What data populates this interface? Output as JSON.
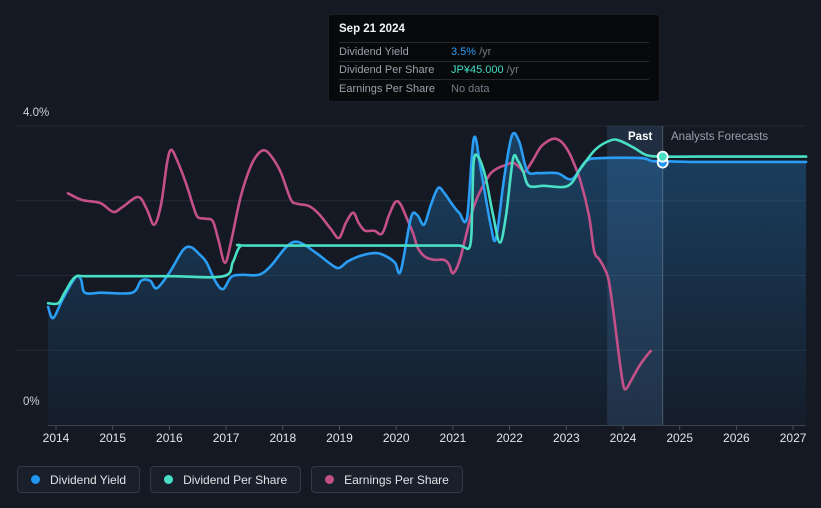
{
  "labels": {
    "past": "Past",
    "forecast": "Analysts Forecasts"
  },
  "axis": {
    "y_top": "4.0%",
    "y_bottom": "0%",
    "years": [
      "2014",
      "2015",
      "2016",
      "2017",
      "2018",
      "2019",
      "2020",
      "2021",
      "2022",
      "2023",
      "2024",
      "2025",
      "2026",
      "2027"
    ]
  },
  "tooltip": {
    "date": "Sep 21 2024",
    "rows": [
      {
        "label": "Dividend Yield",
        "value": "3.5%",
        "unit": "/yr",
        "value_color": "#2e9df5"
      },
      {
        "label": "Dividend Per Share",
        "value": "JP¥45.000",
        "unit": "/yr",
        "value_color": "#43dec5"
      },
      {
        "label": "Earnings Per Share",
        "value": "No data",
        "unit": "",
        "value_color": "#757c86"
      }
    ]
  },
  "legend": [
    {
      "label": "Dividend Yield",
      "color": "#2196f3"
    },
    {
      "label": "Dividend Per Share",
      "color": "#49dfc4"
    },
    {
      "label": "Earnings Per Share",
      "color": "#c4508a"
    }
  ],
  "colors": {
    "background": "#141923",
    "grid": "rgba(175,195,220,0.10)",
    "axis_line": "#39424f",
    "tick": "#4a5260",
    "divider": "rgba(190,205,225,0.30)",
    "highlight_band": "rgba(105,160,225,0.16)",
    "area_top": "rgba(41,154,243,0.30)",
    "area_bottom": "rgba(41,154,243,0.03)",
    "marker_ring": "#ffffff"
  },
  "chart_data": {
    "type": "line",
    "title": "Dividend history and forecast",
    "ylim": [
      0,
      4
    ],
    "y_unit": "percent",
    "ytick_labels": [
      "0%",
      "4.0%"
    ],
    "xticks": [
      2014,
      2015,
      2016,
      2017,
      2018,
      2019,
      2020,
      2021,
      2022,
      2023,
      2024,
      2025,
      2026,
      2027
    ],
    "x_range": [
      2013.85,
      2027.23
    ],
    "past_forecast_divider_x": 2024.7,
    "highlight_band_x": [
      2023.72,
      2024.7
    ],
    "legend_position": "bottom-left",
    "grid": true,
    "marker": {
      "x": 2024.7,
      "date": "Sep 21 2024",
      "points": [
        {
          "series": "Dividend Yield",
          "y": 3.51,
          "color": "#2196f3",
          "display": "3.5% /yr"
        },
        {
          "series": "Dividend Per Share",
          "y": 3.59,
          "color": "#49dfc4",
          "display": "JP¥45.000 /yr"
        }
      ]
    },
    "series": [
      {
        "name": "Earnings Per Share",
        "color": "#c4508a",
        "ends_at": 2024.49,
        "points": [
          [
            2014.21,
            3.1
          ],
          [
            2014.46,
            3.01
          ],
          [
            2014.78,
            2.97
          ],
          [
            2015.01,
            2.85
          ],
          [
            2015.18,
            2.92
          ],
          [
            2015.45,
            3.05
          ],
          [
            2015.6,
            2.89
          ],
          [
            2015.73,
            2.68
          ],
          [
            2015.85,
            2.94
          ],
          [
            2015.96,
            3.51
          ],
          [
            2016.03,
            3.68
          ],
          [
            2016.13,
            3.55
          ],
          [
            2016.29,
            3.24
          ],
          [
            2016.42,
            2.93
          ],
          [
            2016.5,
            2.78
          ],
          [
            2016.65,
            2.76
          ],
          [
            2016.77,
            2.72
          ],
          [
            2016.87,
            2.46
          ],
          [
            2016.98,
            2.17
          ],
          [
            2017.09,
            2.46
          ],
          [
            2017.26,
            3.06
          ],
          [
            2017.44,
            3.47
          ],
          [
            2017.58,
            3.64
          ],
          [
            2017.7,
            3.67
          ],
          [
            2017.83,
            3.56
          ],
          [
            2017.97,
            3.37
          ],
          [
            2018.14,
            3.02
          ],
          [
            2018.25,
            2.96
          ],
          [
            2018.46,
            2.93
          ],
          [
            2018.64,
            2.82
          ],
          [
            2018.85,
            2.62
          ],
          [
            2018.99,
            2.5
          ],
          [
            2019.11,
            2.7
          ],
          [
            2019.24,
            2.84
          ],
          [
            2019.34,
            2.7
          ],
          [
            2019.45,
            2.6
          ],
          [
            2019.61,
            2.6
          ],
          [
            2019.75,
            2.56
          ],
          [
            2019.87,
            2.8
          ],
          [
            2019.98,
            2.98
          ],
          [
            2020.07,
            2.96
          ],
          [
            2020.19,
            2.76
          ],
          [
            2020.3,
            2.56
          ],
          [
            2020.38,
            2.37
          ],
          [
            2020.51,
            2.25
          ],
          [
            2020.67,
            2.21
          ],
          [
            2020.84,
            2.21
          ],
          [
            2020.93,
            2.15
          ],
          [
            2021.0,
            2.03
          ],
          [
            2021.11,
            2.18
          ],
          [
            2021.23,
            2.53
          ],
          [
            2021.32,
            2.8
          ],
          [
            2021.44,
            3.06
          ],
          [
            2021.57,
            3.25
          ],
          [
            2021.67,
            3.37
          ],
          [
            2021.8,
            3.44
          ],
          [
            2021.94,
            3.48
          ],
          [
            2022.06,
            3.51
          ],
          [
            2022.17,
            3.45
          ],
          [
            2022.27,
            3.39
          ],
          [
            2022.4,
            3.53
          ],
          [
            2022.55,
            3.72
          ],
          [
            2022.7,
            3.81
          ],
          [
            2022.8,
            3.83
          ],
          [
            2022.91,
            3.79
          ],
          [
            2023.03,
            3.67
          ],
          [
            2023.14,
            3.49
          ],
          [
            2023.26,
            3.24
          ],
          [
            2023.4,
            2.8
          ],
          [
            2023.49,
            2.33
          ],
          [
            2023.58,
            2.22
          ],
          [
            2023.67,
            2.1
          ],
          [
            2023.75,
            1.93
          ],
          [
            2023.84,
            1.46
          ],
          [
            2023.93,
            0.92
          ],
          [
            2024.0,
            0.55
          ],
          [
            2024.05,
            0.48
          ],
          [
            2024.14,
            0.59
          ],
          [
            2024.28,
            0.78
          ],
          [
            2024.4,
            0.91
          ],
          [
            2024.49,
            0.99
          ]
        ]
      },
      {
        "name": "Dividend Yield",
        "color": "#2a9df4",
        "fill_below": true,
        "points": [
          [
            2013.86,
            1.58
          ],
          [
            2013.95,
            1.43
          ],
          [
            2014.11,
            1.67
          ],
          [
            2014.34,
            1.97
          ],
          [
            2014.44,
            1.95
          ],
          [
            2014.51,
            1.77
          ],
          [
            2014.8,
            1.77
          ],
          [
            2015.34,
            1.77
          ],
          [
            2015.5,
            1.93
          ],
          [
            2015.66,
            1.93
          ],
          [
            2015.78,
            1.83
          ],
          [
            2016.01,
            2.05
          ],
          [
            2016.24,
            2.34
          ],
          [
            2016.38,
            2.38
          ],
          [
            2016.52,
            2.29
          ],
          [
            2016.65,
            2.18
          ],
          [
            2016.82,
            1.91
          ],
          [
            2016.95,
            1.82
          ],
          [
            2017.09,
            1.98
          ],
          [
            2017.28,
            2.01
          ],
          [
            2017.58,
            2.01
          ],
          [
            2017.79,
            2.13
          ],
          [
            2018.06,
            2.38
          ],
          [
            2018.27,
            2.45
          ],
          [
            2018.59,
            2.3
          ],
          [
            2018.85,
            2.15
          ],
          [
            2018.99,
            2.1
          ],
          [
            2019.15,
            2.19
          ],
          [
            2019.4,
            2.27
          ],
          [
            2019.66,
            2.3
          ],
          [
            2019.84,
            2.25
          ],
          [
            2019.98,
            2.17
          ],
          [
            2020.08,
            2.06
          ],
          [
            2020.26,
            2.77
          ],
          [
            2020.37,
            2.81
          ],
          [
            2020.49,
            2.68
          ],
          [
            2020.61,
            2.94
          ],
          [
            2020.74,
            3.17
          ],
          [
            2020.86,
            3.09
          ],
          [
            2020.98,
            2.96
          ],
          [
            2021.11,
            2.84
          ],
          [
            2021.25,
            2.78
          ],
          [
            2021.37,
            3.84
          ],
          [
            2021.5,
            3.38
          ],
          [
            2021.67,
            2.66
          ],
          [
            2021.76,
            2.5
          ],
          [
            2021.9,
            3.28
          ],
          [
            2022.04,
            3.87
          ],
          [
            2022.17,
            3.79
          ],
          [
            2022.31,
            3.4
          ],
          [
            2022.5,
            3.37
          ],
          [
            2022.84,
            3.37
          ],
          [
            2023.1,
            3.29
          ],
          [
            2023.35,
            3.53
          ],
          [
            2023.63,
            3.57
          ],
          [
            2024.32,
            3.57
          ],
          [
            2024.51,
            3.53
          ],
          [
            2024.7,
            3.53
          ],
          [
            2025.2,
            3.52
          ],
          [
            2026.2,
            3.52
          ],
          [
            2027.23,
            3.52
          ]
        ]
      },
      {
        "name": "Dividend Per Share",
        "color": "#49dfc4",
        "points": [
          [
            2013.86,
            1.63
          ],
          [
            2014.04,
            1.63
          ],
          [
            2014.16,
            1.78
          ],
          [
            2014.34,
            1.98
          ],
          [
            2014.6,
            1.99
          ],
          [
            2016.0,
            1.99
          ],
          [
            2016.95,
            1.99
          ],
          [
            2017.12,
            2.18
          ],
          [
            2017.25,
            2.39
          ],
          [
            2017.5,
            2.4
          ],
          [
            2020.5,
            2.4
          ],
          [
            2021.1,
            2.4
          ],
          [
            2021.3,
            2.39
          ],
          [
            2021.34,
            2.9
          ],
          [
            2021.37,
            3.55
          ],
          [
            2021.46,
            3.57
          ],
          [
            2021.58,
            3.3
          ],
          [
            2021.71,
            2.8
          ],
          [
            2021.83,
            2.44
          ],
          [
            2021.94,
            2.82
          ],
          [
            2022.06,
            3.56
          ],
          [
            2022.15,
            3.53
          ],
          [
            2022.24,
            3.39
          ],
          [
            2022.34,
            3.2
          ],
          [
            2022.6,
            3.2
          ],
          [
            2023.03,
            3.2
          ],
          [
            2023.26,
            3.44
          ],
          [
            2023.52,
            3.69
          ],
          [
            2023.79,
            3.81
          ],
          [
            2023.95,
            3.8
          ],
          [
            2024.19,
            3.71
          ],
          [
            2024.42,
            3.61
          ],
          [
            2024.7,
            3.59
          ],
          [
            2025.3,
            3.59
          ],
          [
            2026.3,
            3.59
          ],
          [
            2027.23,
            3.59
          ]
        ]
      }
    ]
  }
}
